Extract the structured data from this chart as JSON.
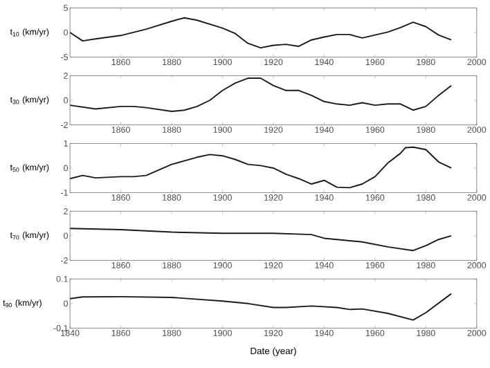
{
  "chart_data": [
    {
      "type": "line",
      "ylabel": "t$_{10}$ (km/yr)",
      "color": "#1a1a1a",
      "xlim": [
        1840,
        2000
      ],
      "ylim": [
        -5,
        5
      ],
      "xticks": [
        1860,
        1880,
        1900,
        1920,
        1940,
        1960,
        1980,
        2000
      ],
      "yticks": [
        -5,
        0,
        5
      ],
      "x": [
        1840,
        1845,
        1850,
        1860,
        1870,
        1880,
        1885,
        1890,
        1900,
        1905,
        1910,
        1915,
        1920,
        1925,
        1930,
        1935,
        1940,
        1945,
        1950,
        1955,
        1960,
        1965,
        1970,
        1975,
        1980,
        1985,
        1990
      ],
      "values": [
        0,
        -1.7,
        -1.3,
        -0.6,
        0.7,
        2.3,
        3.0,
        2.5,
        0.9,
        -0.2,
        -2.2,
        -3.1,
        -2.6,
        -2.4,
        -2.8,
        -1.5,
        -0.9,
        -0.4,
        -0.4,
        -1.1,
        -0.5,
        0.1,
        1.0,
        2.1,
        1.2,
        -0.5,
        -1.5
      ]
    },
    {
      "type": "line",
      "ylabel": "t$_{30}$ (km/yr)",
      "color": "#1a1a1a",
      "xlim": [
        1840,
        2000
      ],
      "ylim": [
        -2,
        2
      ],
      "xticks": [
        1860,
        1880,
        1900,
        1920,
        1940,
        1960,
        1980,
        2000
      ],
      "yticks": [
        -2,
        0,
        2
      ],
      "x": [
        1840,
        1850,
        1860,
        1865,
        1870,
        1880,
        1885,
        1890,
        1895,
        1900,
        1905,
        1910,
        1915,
        1920,
        1925,
        1930,
        1935,
        1940,
        1945,
        1950,
        1955,
        1960,
        1965,
        1970,
        1975,
        1980,
        1985,
        1990
      ],
      "values": [
        -0.4,
        -0.7,
        -0.5,
        -0.5,
        -0.6,
        -0.9,
        -0.8,
        -0.5,
        0,
        0.8,
        1.4,
        1.8,
        1.8,
        1.2,
        0.8,
        0.8,
        0.4,
        -0.1,
        -0.3,
        -0.4,
        -0.2,
        -0.4,
        -0.3,
        -0.3,
        -0.8,
        -0.5,
        0.4,
        1.2
      ]
    },
    {
      "type": "line",
      "ylabel": "t$_{50}$ (km/yr)",
      "color": "#1a1a1a",
      "xlim": [
        1840,
        2000
      ],
      "ylim": [
        -1,
        1
      ],
      "xticks": [
        1860,
        1880,
        1900,
        1920,
        1940,
        1960,
        1980,
        2000
      ],
      "yticks": [
        -1,
        0,
        1
      ],
      "x": [
        1840,
        1845,
        1850,
        1860,
        1865,
        1870,
        1880,
        1890,
        1895,
        1900,
        1905,
        1910,
        1915,
        1920,
        1925,
        1930,
        1935,
        1940,
        1945,
        1950,
        1955,
        1960,
        1965,
        1970,
        1972,
        1975,
        1980,
        1985,
        1990
      ],
      "values": [
        -0.43,
        -0.3,
        -0.4,
        -0.35,
        -0.35,
        -0.3,
        0.15,
        0.44,
        0.55,
        0.5,
        0.35,
        0.15,
        0.1,
        0,
        -0.25,
        -0.43,
        -0.65,
        -0.5,
        -0.78,
        -0.8,
        -0.65,
        -0.35,
        0.2,
        0.6,
        0.83,
        0.85,
        0.75,
        0.25,
        0
      ]
    },
    {
      "type": "line",
      "ylabel": "t$_{70}$ (km/yr)",
      "color": "#1a1a1a",
      "xlim": [
        1840,
        2000
      ],
      "ylim": [
        -2,
        2
      ],
      "xticks": [
        1860,
        1880,
        1900,
        1920,
        1940,
        1960,
        1980,
        2000
      ],
      "yticks": [
        -2,
        0,
        2
      ],
      "x": [
        1840,
        1860,
        1880,
        1900,
        1920,
        1935,
        1940,
        1955,
        1965,
        1975,
        1980,
        1985,
        1990
      ],
      "values": [
        0.6,
        0.5,
        0.3,
        0.2,
        0.2,
        0.1,
        -0.2,
        -0.5,
        -0.9,
        -1.2,
        -0.8,
        -0.3,
        0
      ]
    },
    {
      "type": "line",
      "ylabel": "t$_{90}$ (km/yr)",
      "xlabel": "Date (year)",
      "color": "#1a1a1a",
      "xlim": [
        1840,
        2000
      ],
      "ylim": [
        -0.1,
        0.1
      ],
      "xticks": [
        1840,
        1860,
        1880,
        1900,
        1920,
        1940,
        1960,
        1980,
        2000
      ],
      "yticks": [
        -0.1,
        0,
        0.1
      ],
      "x": [
        1840,
        1845,
        1860,
        1880,
        1900,
        1910,
        1920,
        1925,
        1935,
        1945,
        1950,
        1955,
        1965,
        1975,
        1980,
        1990
      ],
      "values": [
        0.02,
        0.027,
        0.028,
        0.025,
        0.01,
        0,
        -0.016,
        -0.016,
        -0.01,
        -0.016,
        -0.024,
        -0.022,
        -0.04,
        -0.067,
        -0.037,
        0.04
      ]
    }
  ]
}
